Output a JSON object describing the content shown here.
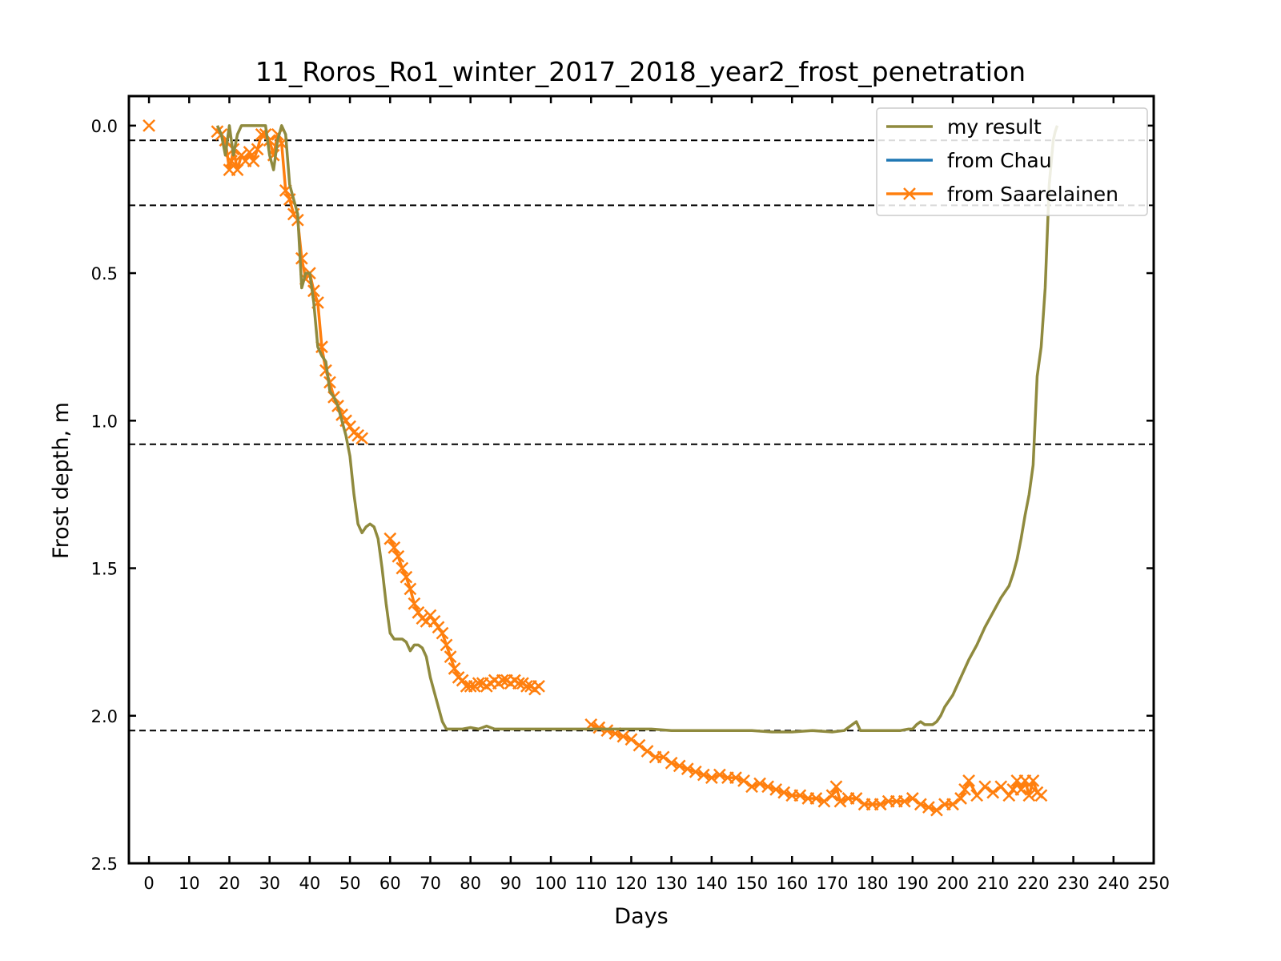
{
  "chart_data": {
    "type": "line",
    "title": "11_Roros_Ro1_winter_2017_2018_year2_frost_penetration",
    "xlabel": "Days",
    "ylabel": "Frost depth, m",
    "xlim": [
      -5,
      250
    ],
    "ylim": [
      2.5,
      -0.1
    ],
    "y_inverted": true,
    "x_ticks": [
      0,
      10,
      20,
      30,
      40,
      50,
      60,
      70,
      80,
      90,
      100,
      110,
      120,
      130,
      140,
      150,
      160,
      170,
      180,
      190,
      200,
      210,
      220,
      230,
      240,
      250
    ],
    "y_ticks": [
      0.0,
      0.5,
      1.0,
      1.5,
      2.0,
      2.5
    ],
    "y_tick_labels": [
      "0.0",
      "0.5",
      "1.0",
      "1.5",
      "2.0",
      "2.5"
    ],
    "grid": false,
    "legend_placement": "top-right",
    "reference_lines": [
      0.05,
      0.27,
      1.08,
      2.05
    ],
    "reference_line_color": "#000000",
    "series": [
      {
        "name": "my result",
        "color": "#8f8a3e",
        "marker": "none",
        "x": [
          0,
          17,
          18,
          19,
          20,
          21,
          22,
          23,
          26,
          28,
          29,
          30,
          31,
          32,
          33,
          34,
          35,
          36,
          37,
          38,
          39,
          40,
          41,
          42,
          43,
          44,
          45,
          46,
          47,
          48,
          49,
          50,
          51,
          52,
          53,
          54,
          55,
          56,
          57,
          58,
          59,
          60,
          61,
          62,
          63,
          64,
          65,
          66,
          67,
          68,
          69,
          70,
          71,
          72,
          73,
          74,
          75,
          76,
          78,
          80,
          82,
          84,
          85,
          86,
          90,
          95,
          100,
          105,
          110,
          115,
          120,
          125,
          130,
          135,
          140,
          145,
          150,
          155,
          160,
          165,
          170,
          173,
          175,
          176,
          177,
          180,
          185,
          187,
          189,
          190,
          191,
          192,
          193,
          194,
          195,
          196,
          197,
          198,
          199,
          200,
          202,
          204,
          206,
          208,
          210,
          212,
          214,
          215,
          216,
          217,
          218,
          219,
          220,
          221,
          222,
          223,
          224,
          225,
          225.5,
          226,
          243
        ],
        "y": [
          0.0,
          0.0,
          0.03,
          0.1,
          0.0,
          0.1,
          0.03,
          0.0,
          0.0,
          0.0,
          0.0,
          0.1,
          0.15,
          0.05,
          0.0,
          0.03,
          0.2,
          0.25,
          0.3,
          0.55,
          0.5,
          0.5,
          0.6,
          0.75,
          0.78,
          0.8,
          0.9,
          0.92,
          0.95,
          1.0,
          1.05,
          1.12,
          1.25,
          1.35,
          1.38,
          1.36,
          1.35,
          1.36,
          1.4,
          1.5,
          1.62,
          1.72,
          1.74,
          1.74,
          1.74,
          1.75,
          1.78,
          1.76,
          1.76,
          1.77,
          1.8,
          1.87,
          1.92,
          1.97,
          2.02,
          2.045,
          2.045,
          2.045,
          2.045,
          2.04,
          2.045,
          2.035,
          2.04,
          2.045,
          2.045,
          2.045,
          2.045,
          2.045,
          2.045,
          2.045,
          2.045,
          2.045,
          2.05,
          2.05,
          2.05,
          2.05,
          2.05,
          2.055,
          2.055,
          2.05,
          2.055,
          2.05,
          2.03,
          2.02,
          2.05,
          2.05,
          2.05,
          2.05,
          2.045,
          2.045,
          2.03,
          2.02,
          2.03,
          2.03,
          2.03,
          2.02,
          2.0,
          1.97,
          1.95,
          1.93,
          1.87,
          1.81,
          1.76,
          1.7,
          1.65,
          1.6,
          1.56,
          1.52,
          1.47,
          1.4,
          1.32,
          1.25,
          1.15,
          0.85,
          0.75,
          0.55,
          0.2,
          0.05,
          0.02,
          0.0,
          0.0
        ]
      },
      {
        "name": "from Chau",
        "color": "#1f77b4",
        "marker": "none",
        "x": [],
        "y": []
      },
      {
        "name": "from Saarelainen",
        "color": "#ff7f0e",
        "marker": "x",
        "x": [
          0,
          17,
          18,
          19,
          20,
          20.5,
          21,
          22,
          23,
          24,
          25,
          26,
          27,
          28,
          29,
          30,
          31,
          32,
          33,
          34,
          35,
          36,
          37,
          38,
          39,
          40,
          41,
          42,
          43,
          44,
          45,
          46,
          47,
          48,
          49,
          50,
          51,
          52,
          53,
          60,
          61,
          62,
          63,
          64,
          65,
          66,
          67,
          68,
          69,
          70,
          71,
          72,
          73,
          74,
          75,
          76,
          77,
          78,
          79,
          80,
          81,
          82,
          83,
          84,
          85,
          86,
          87,
          88,
          89,
          90,
          91,
          92,
          93,
          94,
          95,
          96,
          97,
          110,
          112,
          114,
          116,
          118,
          120,
          122,
          124,
          126,
          128,
          130,
          132,
          134,
          136,
          138,
          140,
          142,
          144,
          146,
          148,
          150,
          152,
          154,
          156,
          158,
          160,
          162,
          164,
          166,
          168,
          170,
          171,
          172,
          174,
          176,
          178,
          180,
          182,
          184,
          186,
          188,
          190,
          192,
          194,
          196,
          198,
          200,
          202,
          203,
          204,
          206,
          208,
          210,
          212,
          214,
          215,
          216,
          217,
          218,
          219,
          220,
          221,
          222
        ],
        "y": [
          0.0,
          0.02,
          0.03,
          0.05,
          0.15,
          0.12,
          0.08,
          0.15,
          0.1,
          0.12,
          0.09,
          0.12,
          0.08,
          0.03,
          0.03,
          0.05,
          0.1,
          0.03,
          0.06,
          0.22,
          0.25,
          0.3,
          0.32,
          0.45,
          0.52,
          0.5,
          0.56,
          0.6,
          0.75,
          0.83,
          0.87,
          0.92,
          0.95,
          0.98,
          1.0,
          1.02,
          1.04,
          1.05,
          1.06,
          1.4,
          1.43,
          1.46,
          1.5,
          1.53,
          1.57,
          1.62,
          1.65,
          1.67,
          1.68,
          1.66,
          1.68,
          1.7,
          1.72,
          1.76,
          1.8,
          1.84,
          1.87,
          1.88,
          1.9,
          1.9,
          1.9,
          1.89,
          1.89,
          1.9,
          1.89,
          1.88,
          1.89,
          1.88,
          1.88,
          1.89,
          1.88,
          1.89,
          1.89,
          1.9,
          1.9,
          1.91,
          1.9,
          2.03,
          2.04,
          2.05,
          2.06,
          2.07,
          2.08,
          2.1,
          2.12,
          2.14,
          2.14,
          2.16,
          2.17,
          2.18,
          2.19,
          2.2,
          2.21,
          2.2,
          2.21,
          2.21,
          2.22,
          2.24,
          2.23,
          2.24,
          2.25,
          2.26,
          2.27,
          2.27,
          2.28,
          2.28,
          2.29,
          2.27,
          2.24,
          2.29,
          2.28,
          2.28,
          2.3,
          2.3,
          2.3,
          2.29,
          2.29,
          2.29,
          2.28,
          2.3,
          2.31,
          2.32,
          2.3,
          2.3,
          2.28,
          2.25,
          2.22,
          2.27,
          2.24,
          2.26,
          2.24,
          2.27,
          2.25,
          2.22,
          2.25,
          2.22,
          2.27,
          2.22,
          2.26,
          2.27
        ]
      }
    ]
  }
}
